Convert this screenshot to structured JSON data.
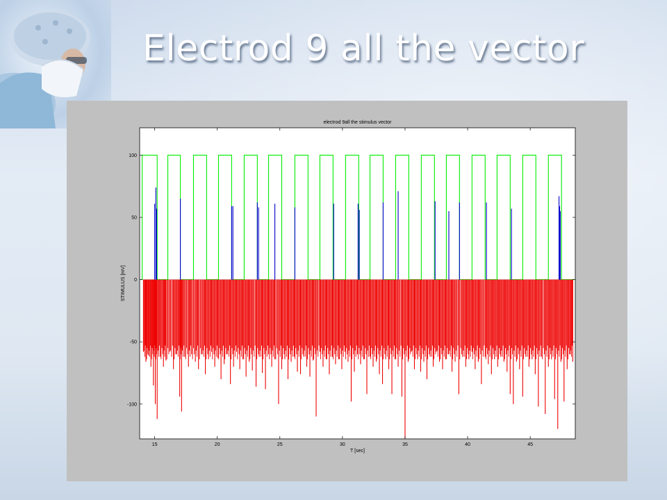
{
  "slide": {
    "title": "Electrod 9 all the vector"
  },
  "chart_data": {
    "type": "line",
    "title": "electrod 9all the stimulus vector",
    "xlabel": "T [sec]",
    "ylabel": "STIMULUS [mV]",
    "xlim": [
      13.8,
      48.6
    ],
    "ylim": [
      -128,
      122
    ],
    "xticks": [
      15,
      20,
      25,
      30,
      35,
      40,
      45
    ],
    "yticks": [
      100,
      50,
      0,
      -50,
      -100
    ],
    "grid": false,
    "series": [
      {
        "color": "#00ee00",
        "style": "square-wave",
        "high": 100,
        "low": 0,
        "pulses": [
          [
            14.0,
            15.2
          ],
          [
            16.05,
            17.05
          ],
          [
            18.1,
            19.15
          ],
          [
            20.1,
            21.15
          ],
          [
            22.15,
            23.2
          ],
          [
            24.1,
            25.15
          ],
          [
            26.2,
            27.25
          ],
          [
            28.2,
            29.25
          ],
          [
            30.25,
            31.3
          ],
          [
            32.2,
            33.25
          ],
          [
            34.25,
            35.3
          ],
          [
            36.3,
            37.35
          ],
          [
            38.3,
            39.35
          ],
          [
            40.35,
            41.4
          ],
          [
            42.35,
            43.4
          ],
          [
            44.4,
            45.45
          ],
          [
            46.45,
            47.5
          ]
        ]
      },
      {
        "color": "#0000cc",
        "style": "spikes",
        "spikes": [
          [
            15.0,
            61
          ],
          [
            15.1,
            74
          ],
          [
            15.15,
            57
          ],
          [
            17.05,
            65
          ],
          [
            21.15,
            59
          ],
          [
            21.25,
            59
          ],
          [
            23.2,
            62
          ],
          [
            23.3,
            58
          ],
          [
            24.6,
            61
          ],
          [
            26.2,
            58
          ],
          [
            29.3,
            61
          ],
          [
            31.25,
            61
          ],
          [
            31.35,
            56
          ],
          [
            33.25,
            62
          ],
          [
            34.45,
            71
          ],
          [
            37.4,
            63
          ],
          [
            38.5,
            55
          ],
          [
            39.35,
            62
          ],
          [
            41.5,
            62
          ],
          [
            43.5,
            57
          ],
          [
            47.3,
            67
          ],
          [
            47.35,
            59
          ],
          [
            47.4,
            55
          ]
        ]
      },
      {
        "color": "#ee0000",
        "style": "spikes",
        "spikes": [
          [
            14.1,
            -58
          ],
          [
            14.3,
            -66
          ],
          [
            14.5,
            -61
          ],
          [
            14.7,
            -70
          ],
          [
            14.9,
            -85
          ],
          [
            15.05,
            -100
          ],
          [
            15.2,
            -112
          ],
          [
            15.45,
            -62
          ],
          [
            15.7,
            -70
          ],
          [
            15.9,
            -65
          ],
          [
            16.2,
            -58
          ],
          [
            16.5,
            -72
          ],
          [
            16.75,
            -60
          ],
          [
            17.0,
            -94
          ],
          [
            17.15,
            -106
          ],
          [
            17.4,
            -62
          ],
          [
            17.7,
            -70
          ],
          [
            17.95,
            -60
          ],
          [
            18.25,
            -66
          ],
          [
            18.5,
            -72
          ],
          [
            18.8,
            -60
          ],
          [
            19.05,
            -76
          ],
          [
            19.3,
            -64
          ],
          [
            19.55,
            -58
          ],
          [
            19.8,
            -70
          ],
          [
            20.05,
            -63
          ],
          [
            20.3,
            -80
          ],
          [
            20.55,
            -68
          ],
          [
            20.8,
            -60
          ],
          [
            21.05,
            -84
          ],
          [
            21.3,
            -70
          ],
          [
            21.55,
            -58
          ],
          [
            21.8,
            -72
          ],
          [
            22.05,
            -64
          ],
          [
            22.3,
            -78
          ],
          [
            22.55,
            -66
          ],
          [
            22.8,
            -73
          ],
          [
            23.1,
            -86
          ],
          [
            23.35,
            -62
          ],
          [
            23.6,
            -75
          ],
          [
            23.85,
            -88
          ],
          [
            24.1,
            -60
          ],
          [
            24.35,
            -70
          ],
          [
            24.6,
            -64
          ],
          [
            24.9,
            -100
          ],
          [
            25.15,
            -72
          ],
          [
            25.4,
            -64
          ],
          [
            25.65,
            -80
          ],
          [
            25.9,
            -66
          ],
          [
            26.15,
            -62
          ],
          [
            26.4,
            -74
          ],
          [
            26.65,
            -76
          ],
          [
            26.9,
            -62
          ],
          [
            27.15,
            -70
          ],
          [
            27.4,
            -78
          ],
          [
            27.65,
            -65
          ],
          [
            27.9,
            -110
          ],
          [
            28.2,
            -58
          ],
          [
            28.45,
            -70
          ],
          [
            28.7,
            -64
          ],
          [
            28.95,
            -76
          ],
          [
            29.2,
            -62
          ],
          [
            29.45,
            -68
          ],
          [
            29.7,
            -64
          ],
          [
            29.95,
            -72
          ],
          [
            30.2,
            -58
          ],
          [
            30.45,
            -66
          ],
          [
            30.7,
            -98
          ],
          [
            30.95,
            -74
          ],
          [
            31.2,
            -60
          ],
          [
            31.45,
            -68
          ],
          [
            31.7,
            -64
          ],
          [
            31.95,
            -92
          ],
          [
            32.2,
            -62
          ],
          [
            32.45,
            -70
          ],
          [
            32.7,
            -66
          ],
          [
            32.95,
            -76
          ],
          [
            33.2,
            -84
          ],
          [
            33.45,
            -64
          ],
          [
            33.7,
            -72
          ],
          [
            33.95,
            -92
          ],
          [
            34.2,
            -64
          ],
          [
            34.45,
            -70
          ],
          [
            34.75,
            -94
          ],
          [
            35.0,
            -128
          ],
          [
            35.25,
            -66
          ],
          [
            35.5,
            -58
          ],
          [
            35.75,
            -72
          ],
          [
            36.0,
            -64
          ],
          [
            36.25,
            -74
          ],
          [
            36.5,
            -66
          ],
          [
            36.75,
            -80
          ],
          [
            37.0,
            -62
          ],
          [
            37.25,
            -70
          ],
          [
            37.5,
            -58
          ],
          [
            37.75,
            -66
          ],
          [
            38.0,
            -72
          ],
          [
            38.25,
            -64
          ],
          [
            38.5,
            -60
          ],
          [
            38.75,
            -74
          ],
          [
            39.0,
            -66
          ],
          [
            39.3,
            -92
          ],
          [
            39.6,
            -62
          ],
          [
            39.85,
            -70
          ],
          [
            40.1,
            -64
          ],
          [
            40.35,
            -58
          ],
          [
            40.6,
            -72
          ],
          [
            40.85,
            -66
          ],
          [
            41.1,
            -84
          ],
          [
            41.4,
            -62
          ],
          [
            41.65,
            -68
          ],
          [
            41.9,
            -76
          ],
          [
            42.15,
            -64
          ],
          [
            42.4,
            -70
          ],
          [
            42.65,
            -62
          ],
          [
            42.9,
            -66
          ],
          [
            43.15,
            -74
          ],
          [
            43.4,
            -92
          ],
          [
            43.65,
            -100
          ],
          [
            43.9,
            -66
          ],
          [
            44.15,
            -72
          ],
          [
            44.4,
            -94
          ],
          [
            44.65,
            -62
          ],
          [
            44.9,
            -70
          ],
          [
            45.15,
            -64
          ],
          [
            45.4,
            -76
          ],
          [
            45.65,
            -102
          ],
          [
            45.9,
            -62
          ],
          [
            46.2,
            -108
          ],
          [
            46.45,
            -70
          ],
          [
            46.7,
            -64
          ],
          [
            46.95,
            -96
          ],
          [
            47.2,
            -120
          ],
          [
            47.45,
            -66
          ],
          [
            47.7,
            -98
          ],
          [
            47.95,
            -72
          ],
          [
            48.2,
            -60
          ],
          [
            48.4,
            -66
          ]
        ]
      }
    ]
  }
}
